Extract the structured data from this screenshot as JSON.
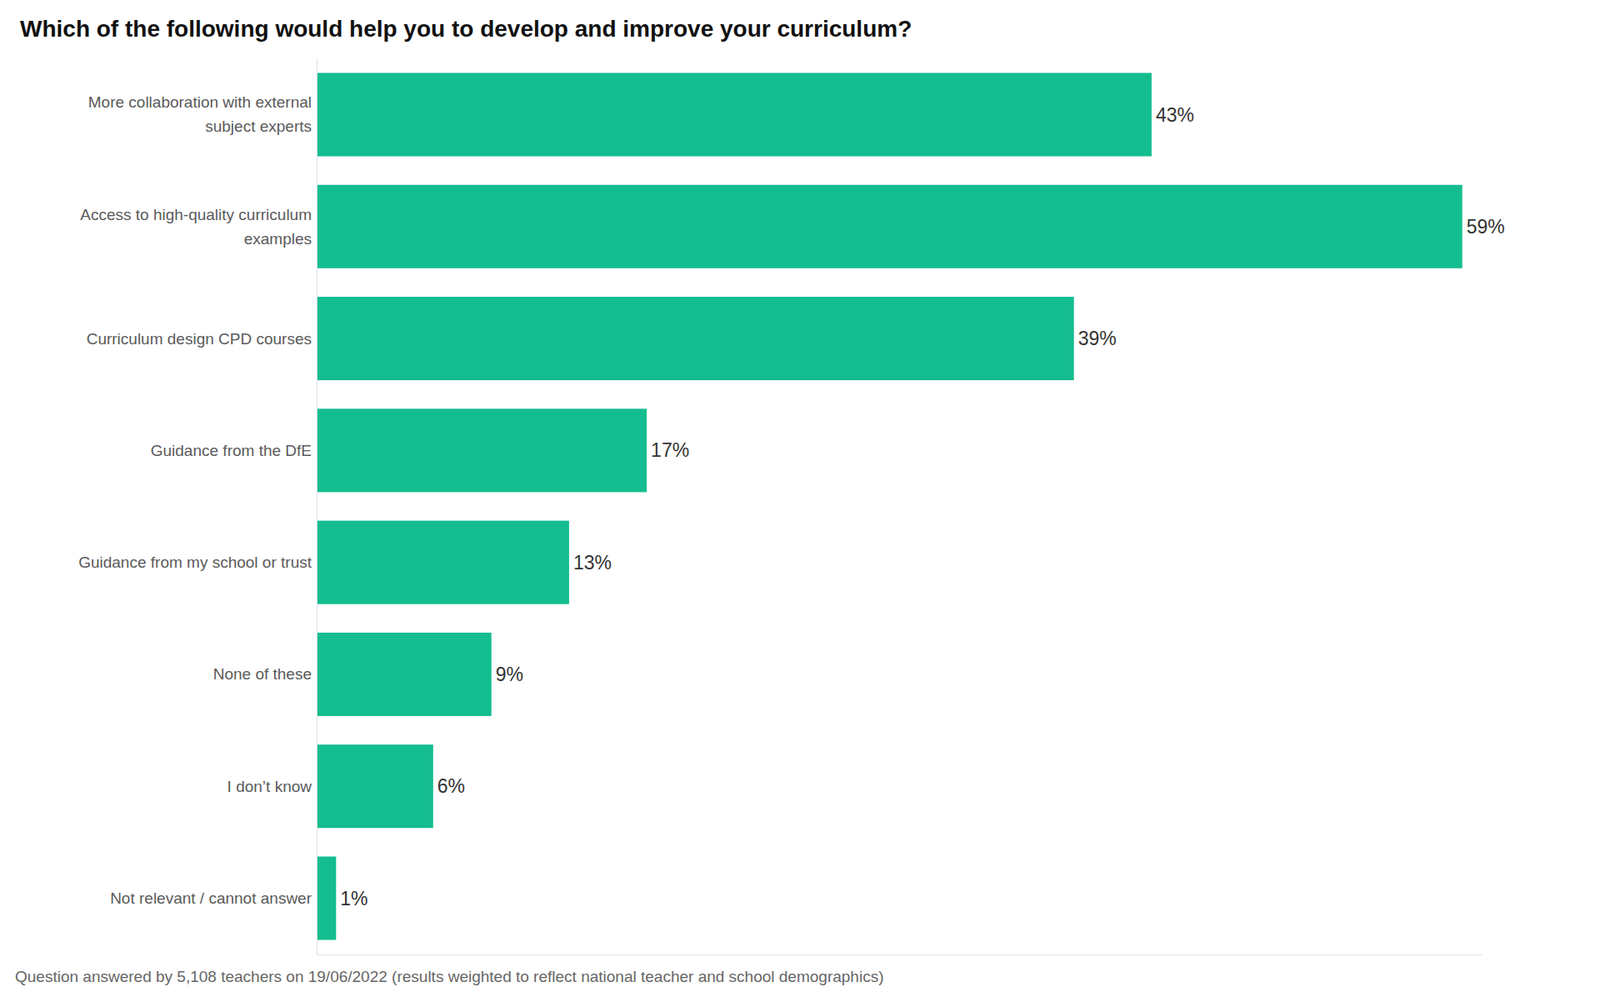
{
  "chart_data": {
    "type": "bar",
    "orientation": "horizontal",
    "title": "Which of the following would help you to develop and improve your curriculum?",
    "footnote": "Question answered by 5,108 teachers on 19/06/2022 (results weighted to reflect national teacher and school demographics)",
    "categories": [
      "More collaboration with external subject experts",
      "Access to high-quality curriculum examples",
      "Curriculum design CPD courses",
      "Guidance from the DfE",
      "Guidance from my school or trust",
      "None of these",
      "I don’t know",
      "Not relevant / cannot answer"
    ],
    "values": [
      43,
      59,
      39,
      17,
      13,
      9,
      6,
      1
    ],
    "value_labels": [
      "43%",
      "59%",
      "39%",
      "17%",
      "13%",
      "9%",
      "6%",
      "1%"
    ],
    "color": "#14bd8f",
    "xlim": [
      0,
      60
    ],
    "grid": false,
    "data_labels": true,
    "tick_labels": "y"
  }
}
